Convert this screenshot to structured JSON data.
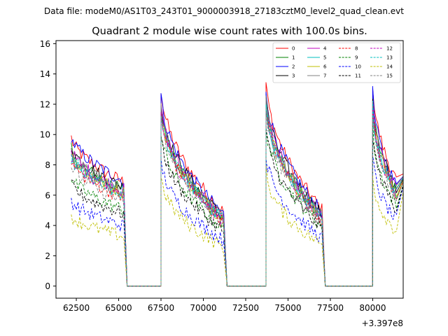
{
  "header": {
    "suptitle": "Data file: modeM0/AS1T03_243T01_9000003918_27183cztM0_level2_quad_clean.evt"
  },
  "chart_data": {
    "type": "line",
    "title": "Quadrant 2 module wise count rates with 100.0s bins.",
    "xlabel": "",
    "ylabel": "",
    "offset_text": "+3.397e8",
    "xlim": [
      61300,
      81800
    ],
    "ylim": [
      -0.8,
      16.2
    ],
    "xticks": [
      62500,
      65000,
      67500,
      70000,
      72500,
      75000,
      77500,
      80000
    ],
    "xtick_labels": [
      "62500",
      "65000",
      "67500",
      "70000",
      "72500",
      "75000",
      "77500",
      "80000"
    ],
    "yticks": [
      0,
      2,
      4,
      6,
      8,
      10,
      12,
      14,
      16
    ],
    "ytick_labels": [
      "0",
      "2",
      "4",
      "6",
      "8",
      "10",
      "12",
      "14",
      "16"
    ],
    "grid": false,
    "legend_position": "top-right",
    "segments": [
      {
        "start": 62200,
        "end": 65300,
        "decay": 0.3
      },
      {
        "start": 67500,
        "end": 71200,
        "decay": 0.6
      },
      {
        "start": 73700,
        "end": 77000,
        "decay": 0.6
      },
      {
        "start": 80000,
        "end": 81400,
        "decay": 0.45
      }
    ],
    "gaps": [
      [
        65500,
        67500
      ],
      [
        71400,
        73700
      ],
      [
        77200,
        80000
      ]
    ],
    "series": [
      {
        "name": "0",
        "color": "#ff0000",
        "dash": "solid",
        "levels": [
          9.8,
          12.2,
          12.6,
          12.6
        ]
      },
      {
        "name": "1",
        "color": "#008000",
        "dash": "solid",
        "levels": [
          9.0,
          11.0,
          11.4,
          11.3
        ]
      },
      {
        "name": "2",
        "color": "#0000ff",
        "dash": "solid",
        "levels": [
          9.9,
          11.8,
          12.2,
          12.0
        ]
      },
      {
        "name": "3",
        "color": "#000000",
        "dash": "solid",
        "levels": [
          9.3,
          11.3,
          11.7,
          11.6
        ]
      },
      {
        "name": "4",
        "color": "#bf00bf",
        "dash": "solid",
        "levels": [
          9.0,
          11.1,
          11.5,
          11.4
        ]
      },
      {
        "name": "5",
        "color": "#00bfbf",
        "dash": "solid",
        "levels": [
          8.5,
          10.7,
          11.1,
          11.0
        ]
      },
      {
        "name": "6",
        "color": "#bfbf00",
        "dash": "solid",
        "levels": [
          8.8,
          10.9,
          11.3,
          11.2
        ]
      },
      {
        "name": "7",
        "color": "#808080",
        "dash": "solid",
        "levels": [
          8.9,
          11.0,
          11.4,
          11.3
        ]
      },
      {
        "name": "8",
        "color": "#ff0000",
        "dash": "dashed",
        "levels": [
          8.3,
          10.5,
          11.0,
          10.8
        ]
      },
      {
        "name": "9",
        "color": "#008000",
        "dash": "dashed",
        "levels": [
          7.2,
          9.4,
          9.8,
          9.6
        ]
      },
      {
        "name": "10",
        "color": "#0000ff",
        "dash": "dashed",
        "levels": [
          5.7,
          7.5,
          7.9,
          7.8
        ]
      },
      {
        "name": "11",
        "color": "#000000",
        "dash": "dashed",
        "levels": [
          6.8,
          9.0,
          9.5,
          9.3
        ]
      },
      {
        "name": "12",
        "color": "#bf00bf",
        "dash": "dashed",
        "levels": [
          8.6,
          10.6,
          11.1,
          11.0
        ]
      },
      {
        "name": "13",
        "color": "#00bfbf",
        "dash": "dashed",
        "levels": [
          8.8,
          10.8,
          11.2,
          11.1
        ]
      },
      {
        "name": "14",
        "color": "#bfbf00",
        "dash": "dashed",
        "levels": [
          4.7,
          6.4,
          6.8,
          6.6
        ]
      },
      {
        "name": "15",
        "color": "#808080",
        "dash": "dashed",
        "levels": [
          8.0,
          10.2,
          10.6,
          10.5
        ]
      }
    ]
  }
}
